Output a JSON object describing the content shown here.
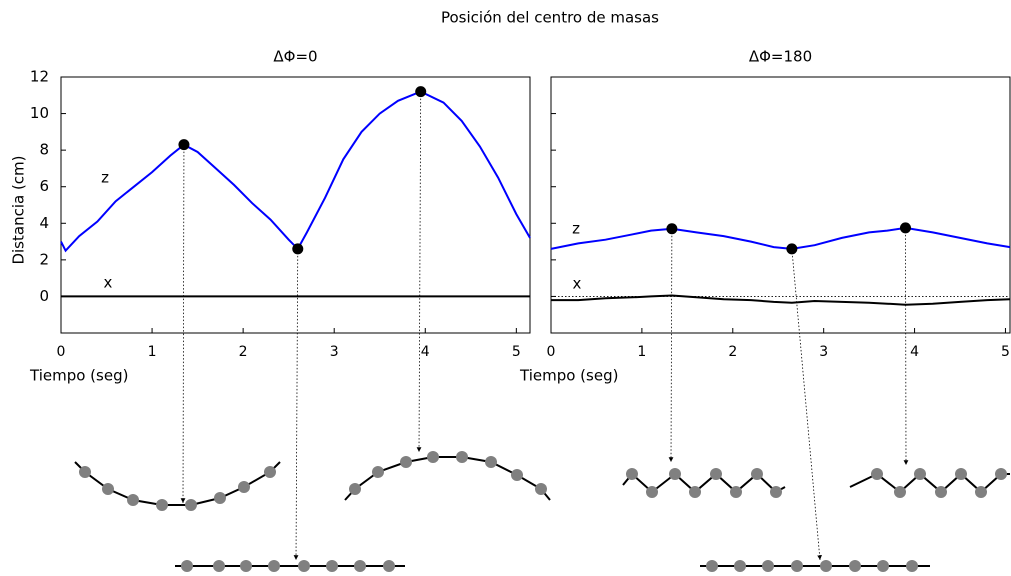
{
  "title": "Posición del centro de masas",
  "chart_data": [
    {
      "type": "line",
      "title": "ΔΦ=0",
      "xlabel": "Tiempo (seg)",
      "ylabel": "Distancia (cm)",
      "xlim": [
        0,
        5.15
      ],
      "ylim": [
        -2,
        12
      ],
      "xticks": [
        0,
        1,
        2,
        3,
        4,
        5
      ],
      "yticks": [
        0,
        2,
        4,
        6,
        8,
        10,
        12
      ],
      "show_ytick_labels": true,
      "x": [
        0,
        0.05,
        0.2,
        0.4,
        0.6,
        0.8,
        1.0,
        1.2,
        1.35,
        1.5,
        1.7,
        1.9,
        2.1,
        2.3,
        2.5,
        2.6,
        2.7,
        2.9,
        3.1,
        3.3,
        3.5,
        3.7,
        3.95,
        4.2,
        4.4,
        4.6,
        4.8,
        5.0,
        5.15
      ],
      "series": [
        {
          "name": "z",
          "color": "#0000ff",
          "values": [
            3.0,
            2.5,
            3.3,
            4.1,
            5.2,
            6.0,
            6.8,
            7.7,
            8.3,
            7.9,
            7.0,
            6.1,
            5.1,
            4.2,
            3.1,
            2.6,
            3.5,
            5.4,
            7.5,
            9.0,
            10.0,
            10.7,
            11.2,
            10.6,
            9.6,
            8.2,
            6.5,
            4.5,
            3.2
          ]
        },
        {
          "name": "x",
          "color": "#000000",
          "values": [
            0,
            0,
            0,
            0,
            0,
            0,
            0,
            0,
            0,
            0,
            0,
            0,
            0,
            0,
            0,
            0,
            0,
            0,
            0,
            0,
            0,
            0,
            0,
            0,
            0,
            0,
            0,
            0,
            0
          ]
        }
      ],
      "markers": {
        "x": [
          1.35,
          2.6,
          3.95
        ],
        "y": [
          8.3,
          2.6,
          11.2
        ]
      }
    },
    {
      "type": "line",
      "title": "ΔΦ=180",
      "xlabel": "Tiempo (seg)",
      "xlim": [
        0,
        5.05
      ],
      "ylim": [
        -2,
        12
      ],
      "xticks": [
        0,
        1,
        2,
        3,
        4,
        5
      ],
      "yticks": [
        0,
        2,
        4,
        6,
        8,
        10,
        12
      ],
      "show_ytick_labels": false,
      "reference_line": 0,
      "x": [
        0,
        0.3,
        0.6,
        0.9,
        1.1,
        1.33,
        1.6,
        1.9,
        2.2,
        2.45,
        2.65,
        2.9,
        3.2,
        3.5,
        3.7,
        3.9,
        4.2,
        4.5,
        4.8,
        5.05
      ],
      "series": [
        {
          "name": "z",
          "color": "#0000ff",
          "values": [
            2.6,
            2.9,
            3.1,
            3.4,
            3.6,
            3.7,
            3.5,
            3.3,
            3.0,
            2.7,
            2.6,
            2.8,
            3.2,
            3.5,
            3.6,
            3.75,
            3.5,
            3.2,
            2.9,
            2.7
          ]
        },
        {
          "name": "x",
          "color": "#000000",
          "values": [
            -0.2,
            -0.2,
            -0.1,
            -0.05,
            0,
            0.05,
            -0.05,
            -0.15,
            -0.2,
            -0.3,
            -0.35,
            -0.25,
            -0.3,
            -0.35,
            -0.4,
            -0.45,
            -0.4,
            -0.3,
            -0.2,
            -0.15
          ]
        }
      ],
      "markers": {
        "x": [
          1.33,
          2.65,
          3.9
        ],
        "y": [
          3.7,
          2.6,
          3.75
        ]
      }
    }
  ]
}
